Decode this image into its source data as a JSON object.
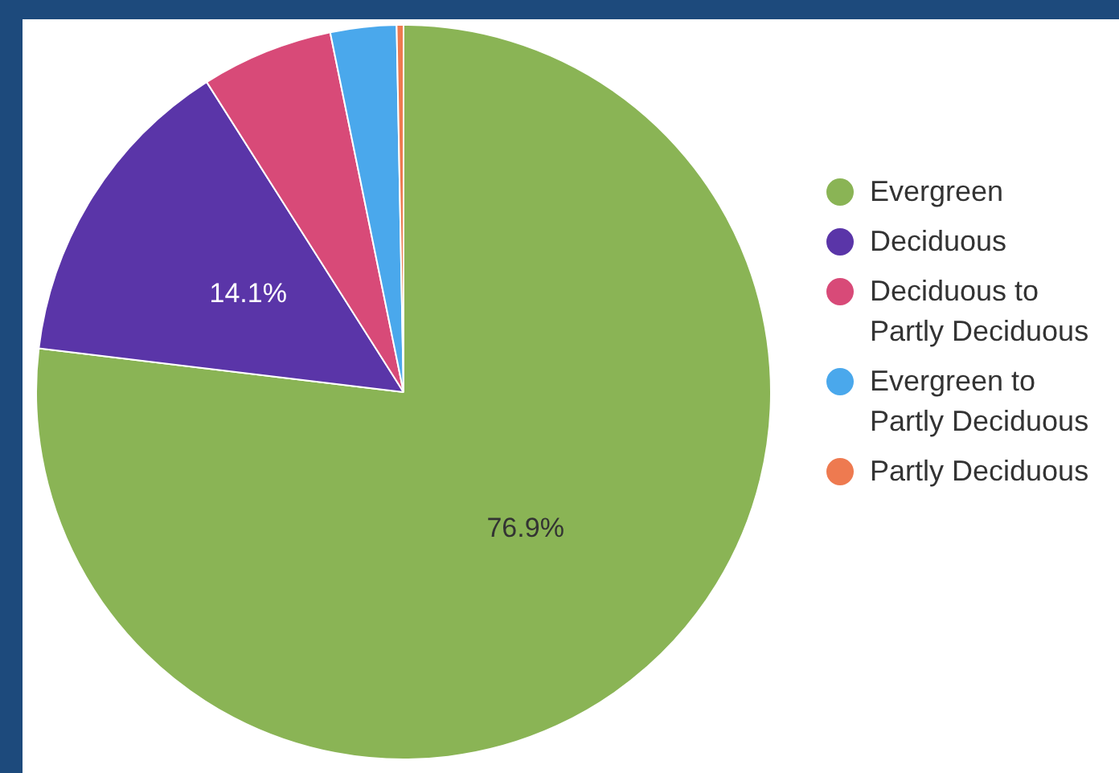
{
  "chart_data": {
    "type": "pie",
    "categories": [
      "Evergreen",
      "Deciduous",
      "Deciduous to Partly Deciduous",
      "Evergreen to Partly Deciduous",
      "Partly Deciduous"
    ],
    "values": [
      76.9,
      14.1,
      5.8,
      2.9,
      0.3
    ],
    "colors": [
      "#8ab455",
      "#5a35a8",
      "#d84a78",
      "#4aa8ec",
      "#ee7a50"
    ],
    "value_labels": [
      "76.9%",
      "14.1%",
      null,
      null,
      null
    ],
    "legend": "right"
  }
}
